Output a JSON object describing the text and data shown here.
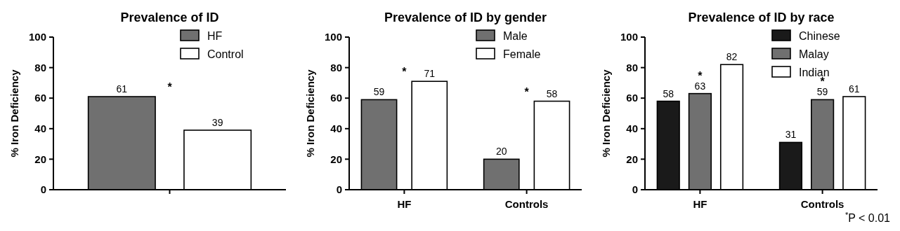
{
  "chart_data": [
    {
      "type": "bar",
      "title": "Prevalence of ID",
      "ylabel": "% Iron Deficiency",
      "categories": [
        null
      ],
      "series": [
        {
          "name": "HF",
          "color": "#707070",
          "values": [
            61
          ]
        },
        {
          "name": "Control",
          "color": "#ffffff",
          "values": [
            39
          ]
        }
      ],
      "ylim": [
        0,
        100
      ],
      "yticks": [
        0,
        20,
        40,
        60,
        80,
        100
      ],
      "data_labels": true,
      "legend": "top right",
      "annotations": [
        "*"
      ]
    },
    {
      "type": "bar",
      "title": "Prevalence of ID by gender",
      "ylabel": "% Iron Deficiency",
      "categories": [
        "HF",
        "Controls"
      ],
      "series": [
        {
          "name": "Male",
          "color": "#707070",
          "values": [
            59,
            20
          ]
        },
        {
          "name": "Female",
          "color": "#ffffff",
          "values": [
            71,
            58
          ]
        }
      ],
      "ylim": [
        0,
        100
      ],
      "yticks": [
        0,
        20,
        40,
        60,
        80,
        100
      ],
      "data_labels": true,
      "legend": "top right",
      "annotations": [
        "*",
        "*"
      ]
    },
    {
      "type": "bar",
      "title": "Prevalence of ID by race",
      "ylabel": "% Iron Deficiency",
      "categories": [
        "HF",
        "Controls"
      ],
      "series": [
        {
          "name": "Chinese",
          "color": "#1a1a1a",
          "values": [
            58,
            31
          ]
        },
        {
          "name": "Malay",
          "color": "#707070",
          "values": [
            63,
            59
          ]
        },
        {
          "name": "Indian",
          "color": "#ffffff",
          "values": [
            82,
            61
          ]
        }
      ],
      "ylim": [
        0,
        100
      ],
      "yticks": [
        0,
        20,
        40,
        60,
        80,
        100
      ],
      "data_labels": true,
      "legend": "top right",
      "annotations": [
        "*",
        "*",
        "$^{*}$P < 0.01"
      ]
    }
  ]
}
